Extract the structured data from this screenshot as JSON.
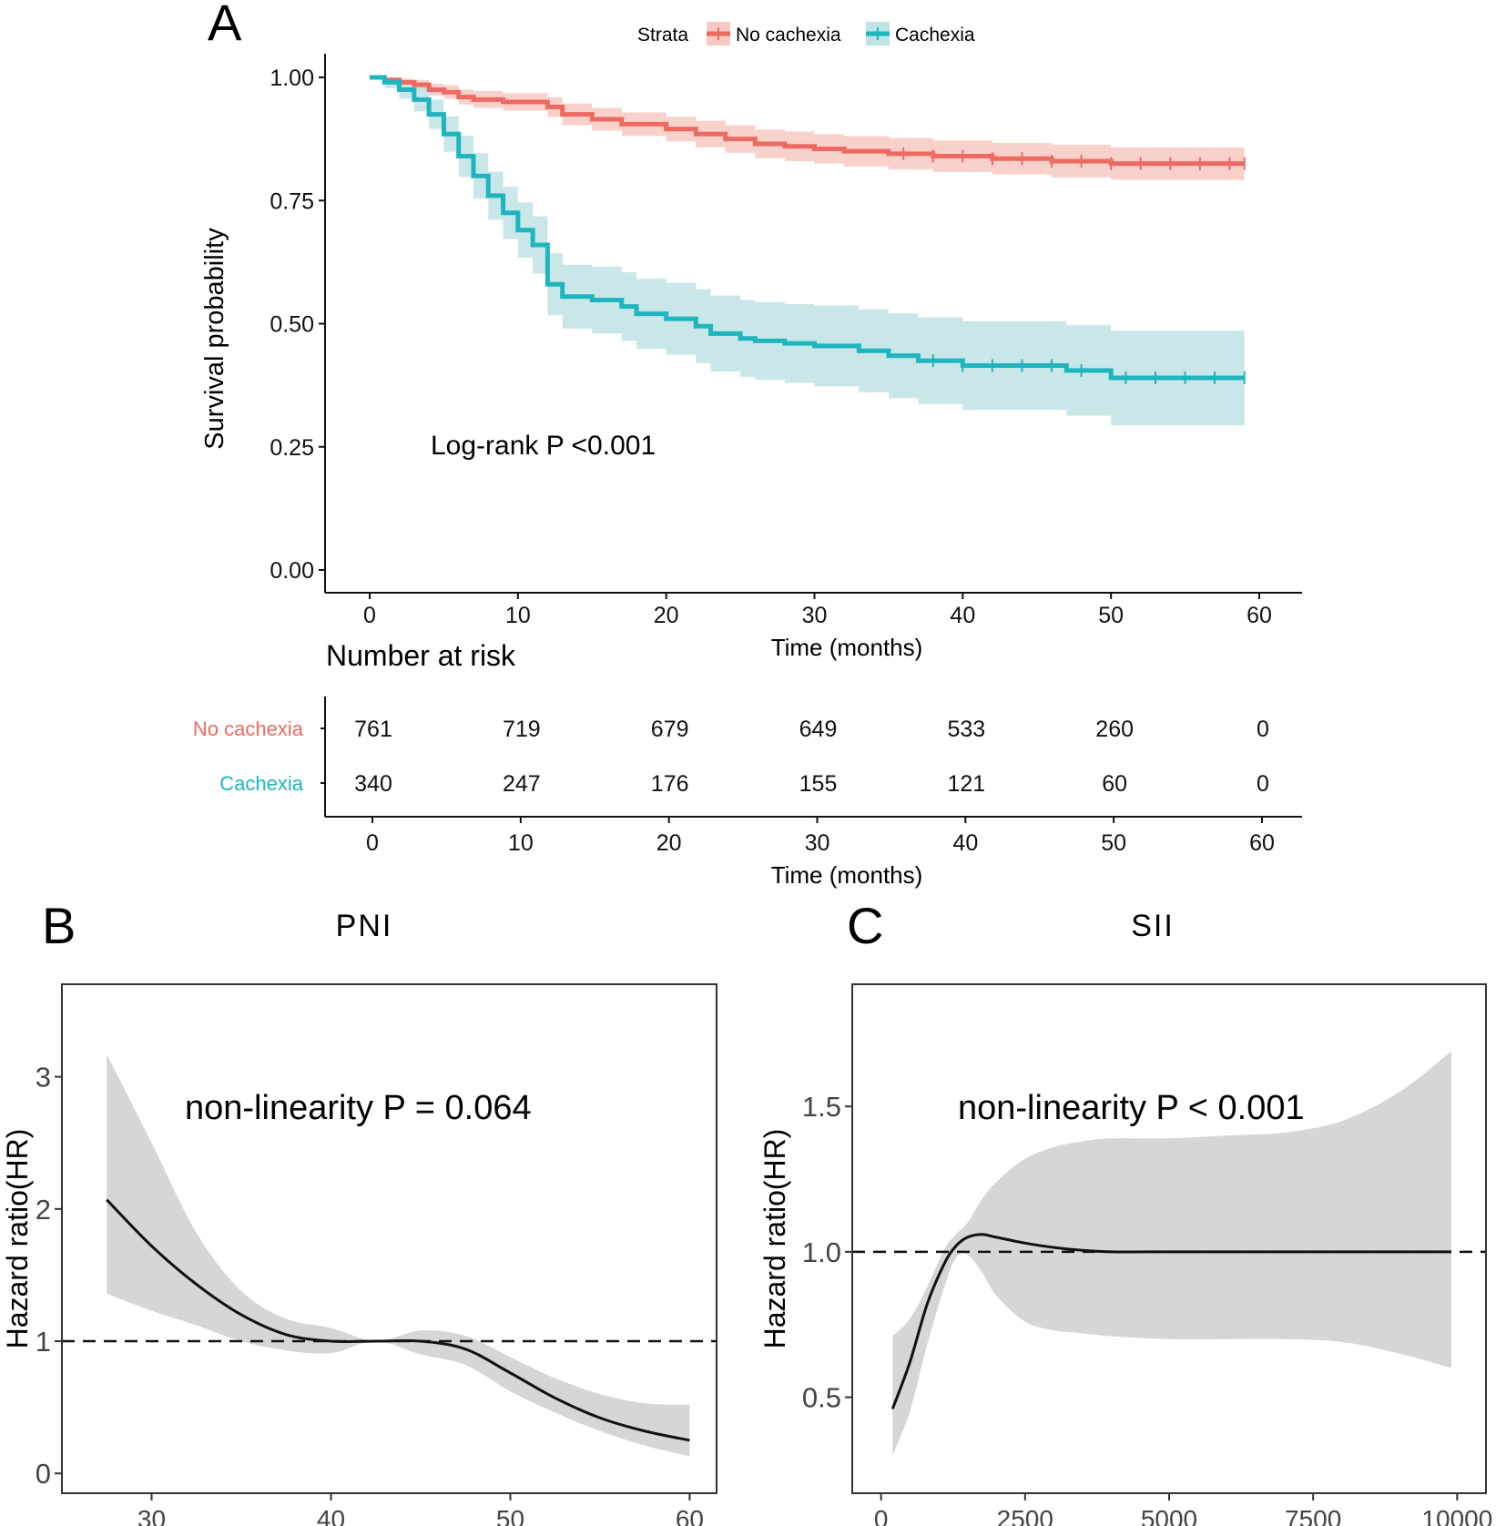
{
  "colors": {
    "no_cachexia": "#ED6A62",
    "no_cachexia_band": "#F8C9C2",
    "cachexia": "#1EB5BF",
    "cachexia_band": "#BFE3E5",
    "spline_band": "#D6D6D8",
    "ink": "#111111",
    "tick_text": "#444444"
  },
  "chart_data": [
    {
      "panel": "A",
      "type": "line",
      "subtype": "kaplan-meier",
      "legend_title": "Strata",
      "legend_position": "top",
      "xlabel": "Time (months)",
      "ylabel": "Survival probability",
      "xlim": [
        0,
        60
      ],
      "ylim": [
        0,
        1
      ],
      "xticks": [
        "0",
        "10",
        "20",
        "30",
        "40",
        "50",
        "60"
      ],
      "yticks": [
        "0.00",
        "0.25",
        "0.50",
        "0.75",
        "1.00"
      ],
      "annotation": "Log-rank P <0.001",
      "series": [
        {
          "name": "No cachexia",
          "color_key": "no_cachexia",
          "x": [
            0,
            1,
            2,
            3,
            4,
            5,
            6,
            7,
            9,
            12,
            13,
            15,
            17,
            20,
            22,
            24,
            26,
            28,
            30,
            32,
            35,
            38,
            42,
            46,
            50,
            59
          ],
          "y": [
            1.0,
            0.995,
            0.99,
            0.985,
            0.975,
            0.97,
            0.96,
            0.955,
            0.95,
            0.94,
            0.925,
            0.915,
            0.905,
            0.895,
            0.885,
            0.875,
            0.865,
            0.86,
            0.855,
            0.85,
            0.845,
            0.84,
            0.835,
            0.83,
            0.825,
            0.825
          ],
          "ci_lower": [
            1.0,
            0.99,
            0.983,
            0.975,
            0.963,
            0.956,
            0.945,
            0.938,
            0.932,
            0.92,
            0.903,
            0.892,
            0.881,
            0.87,
            0.858,
            0.847,
            0.836,
            0.83,
            0.825,
            0.819,
            0.813,
            0.808,
            0.803,
            0.797,
            0.792,
            0.792
          ],
          "ci_upper": [
            1.0,
            1.0,
            0.997,
            0.995,
            0.987,
            0.984,
            0.975,
            0.972,
            0.968,
            0.96,
            0.947,
            0.938,
            0.929,
            0.92,
            0.912,
            0.903,
            0.894,
            0.89,
            0.885,
            0.881,
            0.877,
            0.872,
            0.867,
            0.863,
            0.858,
            0.858
          ],
          "censor_x": [
            36,
            38,
            40,
            42,
            44,
            46,
            48,
            50,
            52,
            54,
            56,
            58,
            59
          ]
        },
        {
          "name": "Cachexia",
          "color_key": "cachexia",
          "x": [
            0,
            1,
            2,
            3,
            4,
            5,
            6,
            7,
            8,
            9,
            10,
            11,
            12,
            13,
            15,
            17,
            18,
            20,
            22,
            23,
            25,
            26,
            28,
            30,
            33,
            35,
            37,
            40,
            47,
            50,
            59
          ],
          "y": [
            1.0,
            0.99,
            0.975,
            0.955,
            0.925,
            0.885,
            0.84,
            0.8,
            0.76,
            0.725,
            0.69,
            0.66,
            0.58,
            0.555,
            0.548,
            0.535,
            0.52,
            0.51,
            0.495,
            0.48,
            0.47,
            0.465,
            0.46,
            0.455,
            0.445,
            0.435,
            0.425,
            0.415,
            0.405,
            0.39,
            0.39
          ],
          "ci_lower": [
            1.0,
            0.978,
            0.957,
            0.931,
            0.895,
            0.849,
            0.798,
            0.754,
            0.711,
            0.672,
            0.634,
            0.602,
            0.517,
            0.49,
            0.48,
            0.465,
            0.449,
            0.437,
            0.42,
            0.403,
            0.392,
            0.386,
            0.38,
            0.373,
            0.361,
            0.349,
            0.337,
            0.325,
            0.313,
            0.294,
            0.294
          ],
          "ci_upper": [
            1.0,
            1.0,
            0.993,
            0.979,
            0.955,
            0.921,
            0.882,
            0.846,
            0.809,
            0.778,
            0.746,
            0.718,
            0.643,
            0.62,
            0.616,
            0.605,
            0.591,
            0.583,
            0.57,
            0.557,
            0.548,
            0.544,
            0.54,
            0.537,
            0.529,
            0.521,
            0.513,
            0.505,
            0.497,
            0.486,
            0.486
          ],
          "censor_x": [
            38,
            40,
            42,
            44,
            46,
            48,
            51,
            53,
            55,
            57,
            59
          ]
        }
      ],
      "risk_table": {
        "title": "Number at risk",
        "xlabel": "Time (months)",
        "times": [
          "0",
          "10",
          "20",
          "30",
          "40",
          "50",
          "60"
        ],
        "rows": [
          {
            "name": "No cachexia",
            "color_key": "no_cachexia",
            "values": [
              "761",
              "719",
              "679",
              "649",
              "533",
              "260",
              "0"
            ]
          },
          {
            "name": "Cachexia",
            "color_key": "cachexia",
            "values": [
              "340",
              "247",
              "176",
              "155",
              "121",
              "60",
              "0"
            ]
          }
        ]
      }
    },
    {
      "panel": "B",
      "type": "line",
      "subtype": "restricted-cubic-spline",
      "title": "PNI",
      "xlabel": "",
      "ylabel": "Hazard ratio(HR)",
      "xlim": [
        25,
        61.5
      ],
      "ylim": [
        -0.15,
        3.7
      ],
      "xticks": [
        "30",
        "40",
        "50",
        "60"
      ],
      "yticks": [
        "0",
        "1",
        "2",
        "3"
      ],
      "reference_y": 1,
      "annotation": "non-linearity P = 0.064",
      "x": [
        27.5,
        30,
        32.5,
        35,
        37.5,
        40,
        42.5,
        45,
        47.5,
        50,
        52.5,
        55,
        57.5,
        60
      ],
      "y": [
        2.07,
        1.72,
        1.43,
        1.2,
        1.05,
        1.0,
        1.0,
        1.0,
        0.94,
        0.76,
        0.57,
        0.42,
        0.32,
        0.25
      ],
      "lower": [
        1.36,
        1.23,
        1.12,
        1.0,
        0.93,
        0.91,
        1.0,
        0.9,
        0.82,
        0.62,
        0.46,
        0.32,
        0.21,
        0.13
      ],
      "upper": [
        3.17,
        2.5,
        1.82,
        1.38,
        1.17,
        1.1,
        1.0,
        1.08,
        1.04,
        0.88,
        0.72,
        0.6,
        0.53,
        0.52
      ]
    },
    {
      "panel": "C",
      "type": "line",
      "subtype": "restricted-cubic-spline",
      "title": "SII",
      "xlabel": "",
      "ylabel": "Hazard ratio(HR)",
      "xlim": [
        -500,
        10500
      ],
      "ylim": [
        0.17,
        1.92
      ],
      "xticks": [
        "0",
        "2500",
        "5000",
        "7500",
        "10000"
      ],
      "yticks": [
        "0.5",
        "1.0",
        "1.5"
      ],
      "reference_y": 1,
      "annotation": "non-linearity P < 0.001",
      "x": [
        200,
        500,
        800,
        1100,
        1300,
        1500,
        1750,
        2000,
        2500,
        3000,
        3500,
        4000,
        5000,
        6000,
        7000,
        8000,
        9000,
        9900
      ],
      "y": [
        0.46,
        0.62,
        0.82,
        0.96,
        1.02,
        1.05,
        1.06,
        1.05,
        1.03,
        1.015,
        1.005,
        1.0,
        1.0,
        1.0,
        1.0,
        1.0,
        1.0,
        1.0
      ],
      "lower": [
        0.3,
        0.45,
        0.68,
        0.88,
        0.98,
        0.99,
        0.93,
        0.85,
        0.76,
        0.73,
        0.72,
        0.71,
        0.7,
        0.7,
        0.7,
        0.69,
        0.65,
        0.6
      ],
      "upper": [
        0.71,
        0.77,
        0.88,
        1.01,
        1.06,
        1.1,
        1.18,
        1.24,
        1.32,
        1.36,
        1.38,
        1.39,
        1.39,
        1.4,
        1.41,
        1.45,
        1.55,
        1.69
      ]
    }
  ],
  "panel_labels": [
    "A",
    "B",
    "C"
  ]
}
